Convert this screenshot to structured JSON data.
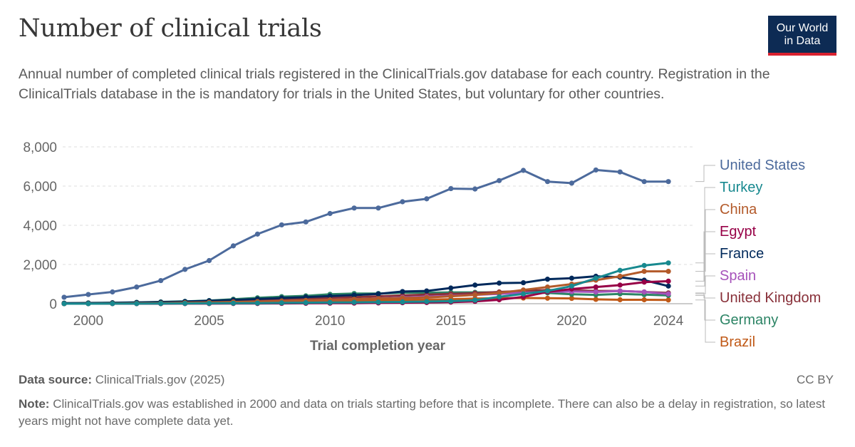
{
  "header": {
    "title": "Number of clinical trials",
    "subtitle": "Annual number of completed clinical trials registered in the ClinicalTrials.gov database for each country. Registration in the ClinicalTrials database in the is mandatory for trials in the United States, but voluntary for other countries.",
    "logo_line1": "Our World",
    "logo_line2": "in Data"
  },
  "footer": {
    "source_label": "Data source:",
    "source_text": "ClinicalTrials.gov (2025)",
    "license": "CC BY",
    "note_label": "Note:",
    "note_text": "ClinicalTrials.gov was established in 2000 and data on trials starting before that is incomplete. There can also be a delay in registration, so latest years might not have complete data yet."
  },
  "chart_data": {
    "type": "line",
    "xlabel": "Trial completion year",
    "ylabel": "",
    "xlim": [
      1999,
      2025
    ],
    "ylim": [
      0,
      8000
    ],
    "x_ticks": [
      2000,
      2005,
      2010,
      2015,
      2020,
      2024
    ],
    "y_ticks": [
      0,
      2000,
      4000,
      6000,
      8000
    ],
    "y_tick_labels": [
      "0",
      "2,000",
      "4,000",
      "6,000",
      "8,000"
    ],
    "grid": true,
    "legend": "right",
    "x": [
      1999,
      2000,
      2001,
      2002,
      2003,
      2004,
      2005,
      2006,
      2007,
      2008,
      2009,
      2010,
      2011,
      2012,
      2013,
      2014,
      2015,
      2016,
      2017,
      2018,
      2019,
      2020,
      2021,
      2022,
      2023,
      2024
    ],
    "series": [
      {
        "name": "United States",
        "color": "#4c6a9c",
        "values": [
          330,
          470,
          600,
          850,
          1180,
          1750,
          2200,
          2950,
          3550,
          4020,
          4170,
          4600,
          4880,
          4880,
          5200,
          5350,
          5870,
          5850,
          6280,
          6800,
          6230,
          6150,
          6820,
          6720,
          6230,
          6230
        ]
      },
      {
        "name": "Turkey",
        "color": "#18898f",
        "values": [
          0,
          0,
          5,
          5,
          10,
          15,
          20,
          25,
          30,
          40,
          50,
          60,
          70,
          80,
          90,
          110,
          130,
          180,
          350,
          500,
          650,
          900,
          1300,
          1700,
          1950,
          2080
        ]
      },
      {
        "name": "China",
        "color": "#b35a2a",
        "values": [
          0,
          5,
          10,
          20,
          30,
          50,
          70,
          90,
          110,
          140,
          170,
          200,
          230,
          260,
          290,
          320,
          380,
          450,
          550,
          700,
          850,
          1000,
          1200,
          1400,
          1650,
          1650
        ]
      },
      {
        "name": "Egypt",
        "color": "#970046",
        "values": [
          0,
          0,
          0,
          0,
          0,
          5,
          5,
          10,
          10,
          15,
          20,
          25,
          30,
          40,
          50,
          60,
          80,
          120,
          200,
          350,
          600,
          750,
          850,
          950,
          1100,
          1150
        ]
      },
      {
        "name": "France",
        "color": "#00295b",
        "values": [
          20,
          30,
          40,
          60,
          80,
          110,
          150,
          190,
          240,
          290,
          340,
          390,
          440,
          500,
          620,
          650,
          800,
          950,
          1050,
          1070,
          1250,
          1300,
          1400,
          1350,
          1200,
          900
        ]
      },
      {
        "name": "Spain",
        "color": "#a652ba",
        "values": [
          5,
          10,
          15,
          20,
          30,
          45,
          60,
          80,
          110,
          140,
          170,
          200,
          230,
          270,
          320,
          360,
          400,
          450,
          500,
          560,
          600,
          620,
          600,
          650,
          600,
          500
        ]
      },
      {
        "name": "United Kingdom",
        "color": "#883039",
        "values": [
          20,
          30,
          40,
          50,
          70,
          90,
          120,
          150,
          180,
          220,
          260,
          300,
          340,
          380,
          420,
          460,
          500,
          540,
          600,
          650,
          700,
          680,
          650,
          650,
          600,
          550
        ]
      },
      {
        "name": "Germany",
        "color": "#38aaba",
        "values": [
          30,
          40,
          50,
          70,
          90,
          120,
          160,
          230,
          300,
          360,
          400,
          480,
          520,
          520,
          560,
          560,
          580,
          580,
          580,
          580,
          550,
          480,
          450,
          500,
          460,
          420
        ],
        "color_override": "#2c8465"
      },
      {
        "name": "Brazil",
        "color": "#c05917",
        "values": [
          5,
          10,
          15,
          20,
          25,
          30,
          40,
          50,
          70,
          90,
          110,
          130,
          150,
          170,
          190,
          210,
          230,
          260,
          280,
          290,
          280,
          270,
          220,
          200,
          200,
          190
        ]
      }
    ]
  }
}
